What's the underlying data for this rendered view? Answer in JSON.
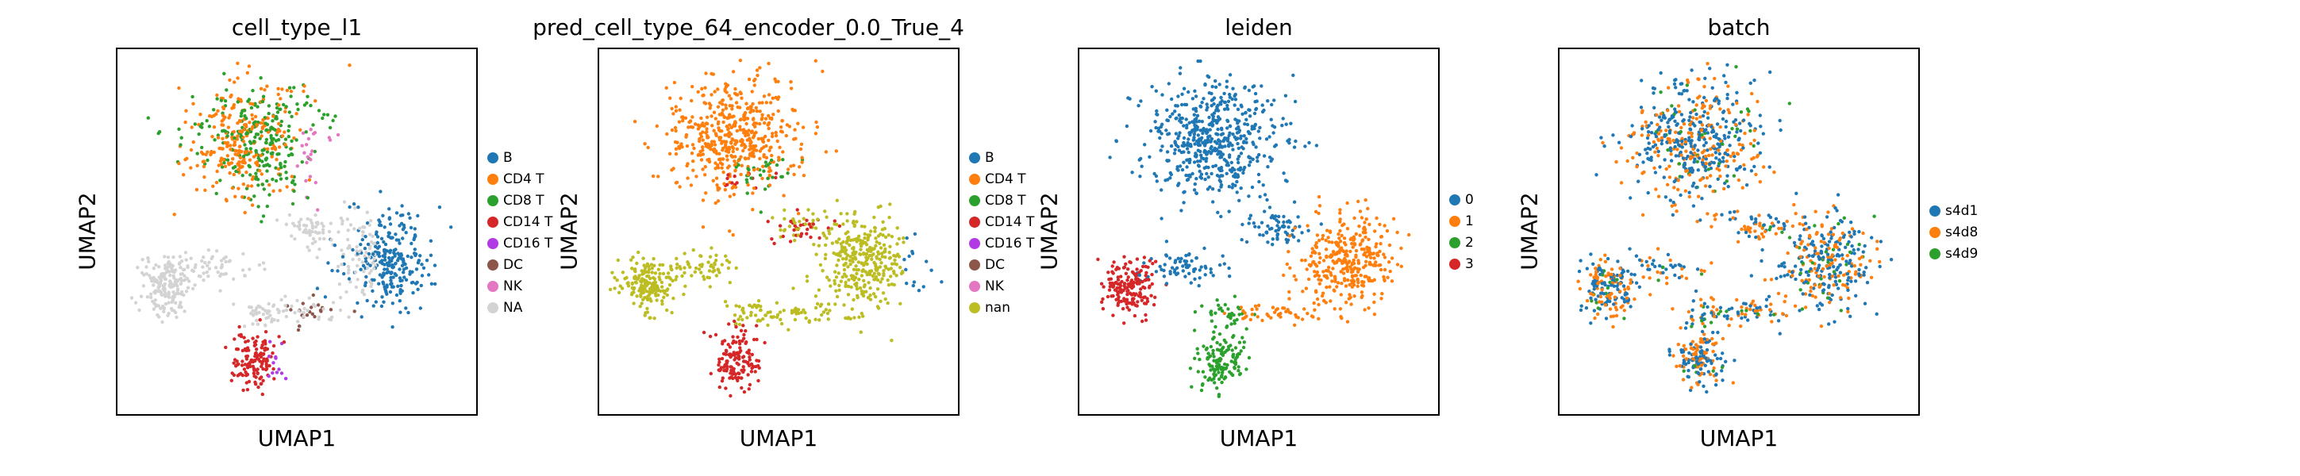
{
  "colors": {
    "blue": "#1f77b4",
    "orange": "#ff7f0e",
    "green": "#2ca02c",
    "red": "#d62728",
    "purple": "#b23ae5",
    "brown": "#8c564b",
    "pink": "#e377c2",
    "lightgray": "#d3d3d3",
    "olive": "#bcbd22"
  },
  "chart_data": [
    {
      "type": "scatter",
      "title": "cell_type_l1",
      "xlabel": "UMAP1",
      "ylabel": "UMAP2",
      "legend_position": "right",
      "series": [
        {
          "name": "B",
          "color": "#1f77b4"
        },
        {
          "name": "CD4 T",
          "color": "#ff7f0e"
        },
        {
          "name": "CD8 T",
          "color": "#2ca02c"
        },
        {
          "name": "CD14 T",
          "color": "#d62728"
        },
        {
          "name": "CD16 T",
          "color": "#b23ae5"
        },
        {
          "name": "DC",
          "color": "#8c564b"
        },
        {
          "name": "NK",
          "color": "#e377c2"
        },
        {
          "name": "NA",
          "color": "#d3d3d3"
        }
      ]
    },
    {
      "type": "scatter",
      "title": "pred_cell_type_64_encoder_0.0_True_4",
      "xlabel": "UMAP1",
      "ylabel": "UMAP2",
      "legend_position": "right",
      "series": [
        {
          "name": "B",
          "color": "#1f77b4"
        },
        {
          "name": "CD4 T",
          "color": "#ff7f0e"
        },
        {
          "name": "CD8 T",
          "color": "#2ca02c"
        },
        {
          "name": "CD14 T",
          "color": "#d62728"
        },
        {
          "name": "CD16 T",
          "color": "#b23ae5"
        },
        {
          "name": "DC",
          "color": "#8c564b"
        },
        {
          "name": "NK",
          "color": "#e377c2"
        },
        {
          "name": "nan",
          "color": "#bcbd22"
        }
      ]
    },
    {
      "type": "scatter",
      "title": "leiden",
      "xlabel": "UMAP1",
      "ylabel": "UMAP2",
      "legend_position": "right",
      "series": [
        {
          "name": "0",
          "color": "#1f77b4"
        },
        {
          "name": "1",
          "color": "#ff7f0e"
        },
        {
          "name": "2",
          "color": "#2ca02c"
        },
        {
          "name": "3",
          "color": "#d62728"
        }
      ]
    },
    {
      "type": "scatter",
      "title": "batch",
      "xlabel": "UMAP1",
      "ylabel": "UMAP2",
      "legend_position": "right",
      "series": [
        {
          "name": "s4d1",
          "color": "#1f77b4"
        },
        {
          "name": "s4d8",
          "color": "#ff7f0e"
        },
        {
          "name": "s4d9",
          "color": "#2ca02c"
        }
      ]
    }
  ]
}
